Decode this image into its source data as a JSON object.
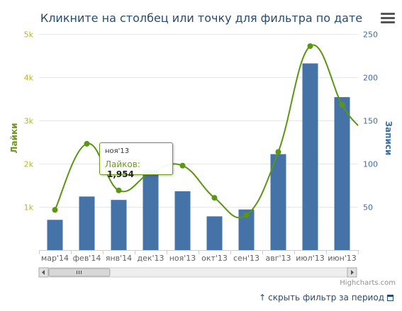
{
  "chart_data": {
    "type": "bar",
    "title": "Кликните на столбец или точку для фильтра по дате",
    "categories": [
      "мар'14",
      "фев'14",
      "янв'14",
      "дек'13",
      "ноя'13",
      "окт'13",
      "сен'13",
      "авг'13",
      "июл'13",
      "июн'13"
    ],
    "y_left": {
      "label": "Лайки",
      "ticks": [
        "1k",
        "2k",
        "3k",
        "4k",
        "5k"
      ],
      "ylim": [
        0,
        5000
      ]
    },
    "y_right": {
      "label": "Записи",
      "ticks": [
        "50",
        "100",
        "150",
        "200",
        "250"
      ],
      "ylim": [
        0,
        250
      ]
    },
    "series": [
      {
        "name": "Записи",
        "type": "bar",
        "axis": "right",
        "color": "#4572a7",
        "values": [
          35,
          62,
          58,
          93,
          68,
          39,
          47,
          111,
          216,
          177
        ]
      },
      {
        "name": "Лайки",
        "type": "spline",
        "axis": "left",
        "color": "#5b9611",
        "values": [
          930,
          2460,
          1380,
          1790,
          1954,
          1210,
          810,
          2270,
          4720,
          3360
        ],
        "trail_end": 2880
      }
    ],
    "grid": true,
    "credits": "Highcharts.com"
  },
  "tooltip": {
    "date": "ноя'13",
    "label": "Лайков:",
    "value": "1,954"
  },
  "footer": {
    "link_text": "скрыть фильтр за период",
    "arrow": "↑"
  },
  "menu": {
    "icon": "hamburger-menu-icon"
  },
  "scrollbar": {
    "left_arrow": "◂",
    "right_arrow": "▸",
    "grip": "III"
  }
}
